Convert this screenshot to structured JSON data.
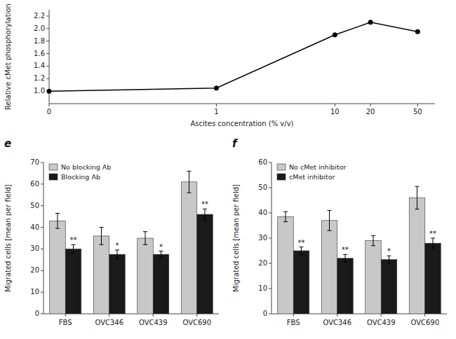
{
  "chart_data": [
    {
      "type": "line",
      "x": [
        0,
        1,
        10,
        20,
        50
      ],
      "values": [
        1.0,
        1.05,
        1.9,
        2.1,
        1.95
      ],
      "color": "#000000",
      "marker": "circle",
      "line_style": "solid",
      "x_label": "Ascites concentration (% v/v)",
      "y_label": "Relative cMet phosphorylation",
      "log": "x",
      "xlim": [
        0,
        70
      ],
      "xticks": [
        0,
        1,
        10,
        20,
        50
      ],
      "ylim": [
        0.8,
        2.3
      ],
      "yticks": [
        {
          "value": 1.0,
          "label": "1.0"
        },
        1.2,
        1.4,
        1.6,
        1.8,
        {
          "value": 2.0,
          "label": "2.0"
        },
        2.2
      ]
    },
    {
      "type": "bar",
      "title": "e",
      "categories": [
        "FBS",
        "OVC346",
        "OVC439",
        "OVC690"
      ],
      "series": [
        {
          "name": "No blocking Ab",
          "color": "#c8c8c8",
          "values": [
            43,
            36,
            35,
            61
          ],
          "errors": [
            3.5,
            4,
            3,
            5
          ]
        },
        {
          "name": "Blocking Ab",
          "color": "#1a1a1a",
          "values": [
            30,
            27.5,
            27.5,
            46
          ],
          "errors": [
            2,
            2,
            1.5,
            2.5
          ],
          "annotations": [
            "**",
            "*",
            "*",
            "**"
          ]
        }
      ],
      "y_label": "Migrated cells [mean per field]",
      "ylim": [
        0,
        70
      ],
      "yticks": [
        0,
        10,
        20,
        30,
        40,
        50,
        60,
        70
      ],
      "legend": "upper left"
    },
    {
      "type": "bar",
      "title": "f",
      "categories": [
        "FBS",
        "OVC346",
        "OVC439",
        "OVC690"
      ],
      "series": [
        {
          "name": "No cMet inhibitor",
          "color": "#c8c8c8",
          "values": [
            38.5,
            37,
            29,
            46
          ],
          "errors": [
            2,
            4,
            2,
            4.5
          ]
        },
        {
          "name": "cMet inhibitor",
          "color": "#1a1a1a",
          "values": [
            25,
            22,
            21.5,
            28
          ],
          "errors": [
            1.5,
            1.5,
            1.5,
            2
          ],
          "annotations": [
            "**",
            "**",
            "*",
            "**"
          ]
        }
      ],
      "y_label": "Migrated cells [mean per field]",
      "ylim": [
        0,
        60
      ],
      "yticks": [
        0,
        10,
        20,
        30,
        40,
        50,
        60
      ],
      "legend": "upper left"
    }
  ]
}
